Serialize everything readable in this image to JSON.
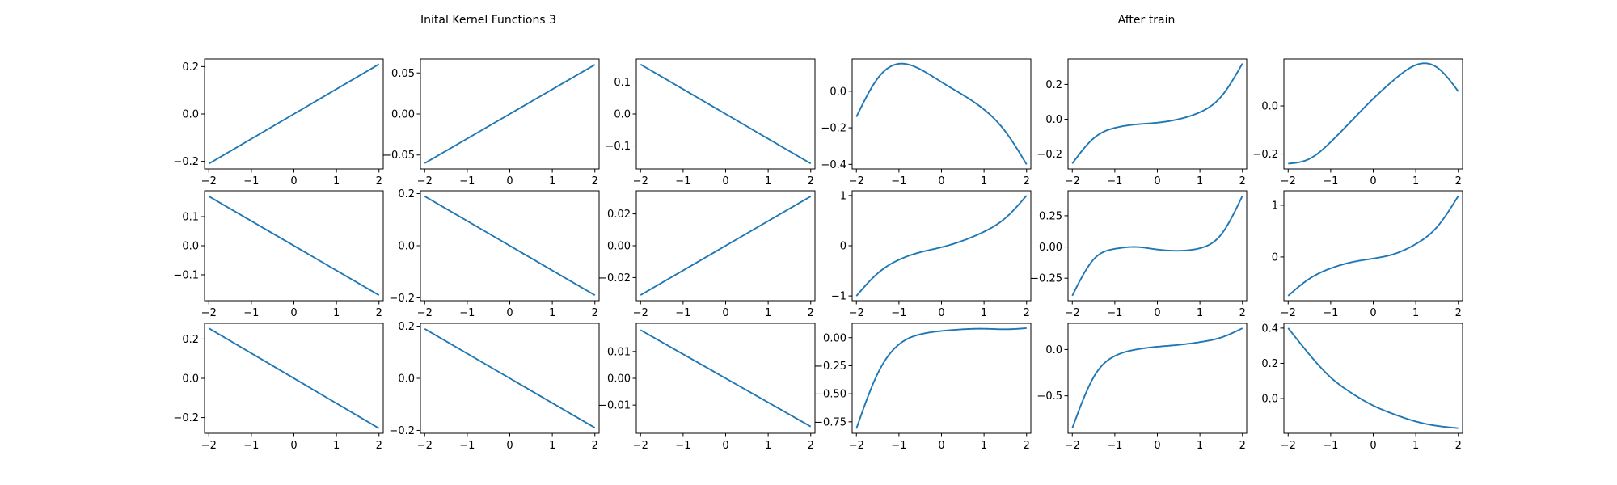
{
  "titles": {
    "left": "Inital Kernel Functions 3",
    "right": "After train"
  },
  "chart_data": [
    {
      "type": "line",
      "row": 0,
      "col": 0,
      "xlim": [
        -2.1,
        2.1
      ],
      "ylim": [
        -0.232,
        0.232
      ],
      "xticks": [
        -2,
        -1,
        0,
        1,
        2
      ],
      "yticks": [
        -0.2,
        0.0,
        0.2
      ],
      "yticklabels": [
        "−0.2",
        "0.0",
        "0.2"
      ],
      "series": [
        {
          "fn": "linear",
          "x": [
            -2,
            2
          ],
          "y": [
            -0.21,
            0.21
          ],
          "color": "#1f77b4"
        }
      ]
    },
    {
      "type": "line",
      "row": 0,
      "col": 1,
      "xlim": [
        -2.1,
        2.1
      ],
      "ylim": [
        -0.067,
        0.067
      ],
      "xticks": [
        -2,
        -1,
        0,
        1,
        2
      ],
      "yticks": [
        -0.05,
        0.0,
        0.05
      ],
      "yticklabels": [
        "−0.05",
        "0.00",
        "0.05"
      ],
      "series": [
        {
          "fn": "linear",
          "x": [
            -2,
            2
          ],
          "y": [
            -0.06,
            0.06
          ],
          "color": "#1f77b4"
        }
      ]
    },
    {
      "type": "line",
      "row": 0,
      "col": 2,
      "xlim": [
        -2.1,
        2.1
      ],
      "ylim": [
        -0.172,
        0.172
      ],
      "xticks": [
        -2,
        -1,
        0,
        1,
        2
      ],
      "yticks": [
        -0.1,
        0.0,
        0.1
      ],
      "yticklabels": [
        "−0.1",
        "0.0",
        "0.1"
      ],
      "series": [
        {
          "fn": "linear",
          "x": [
            -2,
            2
          ],
          "y": [
            0.155,
            -0.155
          ],
          "color": "#1f77b4"
        }
      ]
    },
    {
      "type": "line",
      "row": 0,
      "col": 3,
      "xlim": [
        -2.1,
        2.1
      ],
      "ylim": [
        -0.425,
        0.176
      ],
      "xticks": [
        -2,
        -1,
        0,
        1,
        2
      ],
      "yticks": [
        -0.4,
        -0.2,
        0.0
      ],
      "yticklabels": [
        "−0.4",
        "−0.2",
        "0.0"
      ],
      "series": [
        {
          "fn": "spline",
          "x": [
            -2,
            -1.5,
            -1,
            -0.5,
            0,
            0.5,
            1,
            1.5,
            2
          ],
          "y": [
            -0.14,
            0.07,
            0.15,
            0.12,
            0.05,
            -0.02,
            -0.1,
            -0.22,
            -0.4
          ],
          "color": "#1f77b4"
        }
      ]
    },
    {
      "type": "line",
      "row": 0,
      "col": 4,
      "xlim": [
        -2.1,
        2.1
      ],
      "ylim": [
        -0.286,
        0.346
      ],
      "xticks": [
        -2,
        -1,
        0,
        1,
        2
      ],
      "yticks": [
        -0.2,
        0.0,
        0.2
      ],
      "yticklabels": [
        "−0.2",
        "0.0",
        "0.2"
      ],
      "series": [
        {
          "fn": "spline",
          "x": [
            -2,
            -1.5,
            -1,
            -0.5,
            0,
            0.5,
            1,
            1.5,
            2
          ],
          "y": [
            -0.255,
            -0.11,
            -0.05,
            -0.03,
            -0.02,
            0.0,
            0.04,
            0.13,
            0.32
          ],
          "color": "#1f77b4"
        }
      ]
    },
    {
      "type": "line",
      "row": 0,
      "col": 5,
      "xlim": [
        -2.1,
        2.1
      ],
      "ylim": [
        -0.262,
        0.195
      ],
      "xticks": [
        -2,
        -1,
        0,
        1,
        2
      ],
      "yticks": [
        -0.2,
        0.0
      ],
      "yticklabels": [
        "−0.2",
        "0.0"
      ],
      "series": [
        {
          "fn": "spline",
          "x": [
            -2,
            -1.5,
            -1,
            -0.5,
            0,
            0.5,
            1,
            1.5,
            2
          ],
          "y": [
            -0.24,
            -0.22,
            -0.15,
            -0.06,
            0.03,
            0.11,
            0.17,
            0.16,
            0.06
          ],
          "color": "#1f77b4"
        }
      ]
    },
    {
      "type": "line",
      "row": 1,
      "col": 0,
      "xlim": [
        -2.1,
        2.1
      ],
      "ylim": [
        -0.189,
        0.189
      ],
      "xticks": [
        -2,
        -1,
        0,
        1,
        2
      ],
      "yticks": [
        -0.1,
        0.0,
        0.1
      ],
      "yticklabels": [
        "−0.1",
        "0.0",
        "0.1"
      ],
      "series": [
        {
          "fn": "linear",
          "x": [
            -2,
            2
          ],
          "y": [
            0.17,
            -0.17
          ],
          "color": "#1f77b4"
        }
      ]
    },
    {
      "type": "line",
      "row": 1,
      "col": 1,
      "xlim": [
        -2.1,
        2.1
      ],
      "ylim": [
        -0.211,
        0.211
      ],
      "xticks": [
        -2,
        -1,
        0,
        1,
        2
      ],
      "yticks": [
        -0.2,
        0.0,
        0.2
      ],
      "yticklabels": [
        "−0.2",
        "0.0",
        "0.2"
      ],
      "series": [
        {
          "fn": "linear",
          "x": [
            -2,
            2
          ],
          "y": [
            0.19,
            -0.19
          ],
          "color": "#1f77b4"
        }
      ]
    },
    {
      "type": "line",
      "row": 1,
      "col": 2,
      "xlim": [
        -2.1,
        2.1
      ],
      "ylim": [
        -0.0345,
        0.0345
      ],
      "xticks": [
        -2,
        -1,
        0,
        1,
        2
      ],
      "yticks": [
        -0.02,
        0.0,
        0.02
      ],
      "yticklabels": [
        "−0.02",
        "0.00",
        "0.02"
      ],
      "series": [
        {
          "fn": "linear",
          "x": [
            -2,
            2
          ],
          "y": [
            -0.031,
            0.031
          ],
          "color": "#1f77b4"
        }
      ]
    },
    {
      "type": "line",
      "row": 1,
      "col": 3,
      "xlim": [
        -2.1,
        2.1
      ],
      "ylim": [
        -1.095,
        1.095
      ],
      "xticks": [
        -2,
        -1,
        0,
        1,
        2
      ],
      "yticks": [
        -1,
        0,
        1
      ],
      "yticklabels": [
        "−1",
        "0",
        "1"
      ],
      "series": [
        {
          "fn": "spline",
          "x": [
            -2,
            -1.5,
            -1,
            -0.5,
            0,
            0.5,
            1,
            1.5,
            2
          ],
          "y": [
            -1.0,
            -0.55,
            -0.28,
            -0.13,
            -0.03,
            0.1,
            0.28,
            0.55,
            1.0
          ],
          "color": "#1f77b4"
        }
      ]
    },
    {
      "type": "line",
      "row": 1,
      "col": 4,
      "xlim": [
        -2.1,
        2.1
      ],
      "ylim": [
        -0.43,
        0.45
      ],
      "xticks": [
        -2,
        -1,
        0,
        1,
        2
      ],
      "yticks": [
        -0.25,
        0.0,
        0.25
      ],
      "yticklabels": [
        "−0.25",
        "0.00",
        "0.25"
      ],
      "series": [
        {
          "fn": "spline",
          "x": [
            -2,
            -1.5,
            -1,
            -0.5,
            0,
            0.5,
            1,
            1.5,
            2
          ],
          "y": [
            -0.39,
            -0.1,
            -0.015,
            0.0,
            -0.02,
            -0.03,
            -0.01,
            0.1,
            0.41
          ],
          "color": "#1f77b4"
        }
      ]
    },
    {
      "type": "line",
      "row": 1,
      "col": 5,
      "xlim": [
        -2.1,
        2.1
      ],
      "ylim": [
        -0.845,
        1.28
      ],
      "xticks": [
        -2,
        -1,
        0,
        1,
        2
      ],
      "yticks": [
        0,
        1
      ],
      "yticklabels": [
        "0",
        "1"
      ],
      "series": [
        {
          "fn": "spline",
          "x": [
            -2,
            -1.5,
            -1,
            -0.5,
            0,
            0.5,
            1,
            1.5,
            2
          ],
          "y": [
            -0.75,
            -0.42,
            -0.22,
            -0.1,
            -0.03,
            0.06,
            0.25,
            0.58,
            1.18
          ],
          "color": "#1f77b4"
        }
      ]
    },
    {
      "type": "line",
      "row": 2,
      "col": 0,
      "xlim": [
        -2.1,
        2.1
      ],
      "ylim": [
        -0.28,
        0.28
      ],
      "xticks": [
        -2,
        -1,
        0,
        1,
        2
      ],
      "yticks": [
        -0.2,
        0.0,
        0.2
      ],
      "yticklabels": [
        "−0.2",
        "0.0",
        "0.2"
      ],
      "series": [
        {
          "fn": "linear",
          "x": [
            -2,
            2
          ],
          "y": [
            0.255,
            -0.255
          ],
          "color": "#1f77b4"
        }
      ]
    },
    {
      "type": "line",
      "row": 2,
      "col": 1,
      "xlim": [
        -2.1,
        2.1
      ],
      "ylim": [
        -0.211,
        0.211
      ],
      "xticks": [
        -2,
        -1,
        0,
        1,
        2
      ],
      "yticks": [
        -0.2,
        0.0,
        0.2
      ],
      "yticklabels": [
        "−0.2",
        "0.0",
        "0.2"
      ],
      "series": [
        {
          "fn": "linear",
          "x": [
            -2,
            2
          ],
          "y": [
            0.19,
            -0.19
          ],
          "color": "#1f77b4"
        }
      ]
    },
    {
      "type": "line",
      "row": 2,
      "col": 2,
      "xlim": [
        -2.1,
        2.1
      ],
      "ylim": [
        -0.0205,
        0.0205
      ],
      "xticks": [
        -2,
        -1,
        0,
        1,
        2
      ],
      "yticks": [
        -0.01,
        0.0,
        0.01
      ],
      "yticklabels": [
        "−0.01",
        "0.00",
        "0.01"
      ],
      "series": [
        {
          "fn": "linear",
          "x": [
            -2,
            2
          ],
          "y": [
            0.018,
            -0.018
          ],
          "color": "#1f77b4"
        }
      ]
    },
    {
      "type": "line",
      "row": 2,
      "col": 3,
      "xlim": [
        -2.1,
        2.1
      ],
      "ylim": [
        -0.852,
        0.128
      ],
      "xticks": [
        -2,
        -1,
        0,
        1,
        2
      ],
      "yticks": [
        -0.75,
        -0.5,
        -0.25,
        0.0
      ],
      "yticklabels": [
        "−0.75",
        "−0.50",
        "−0.25",
        "0.00"
      ],
      "series": [
        {
          "fn": "spline",
          "x": [
            -2,
            -1.5,
            -1,
            -0.5,
            0,
            0.5,
            1,
            1.5,
            2
          ],
          "y": [
            -0.81,
            -0.32,
            -0.06,
            0.03,
            0.06,
            0.075,
            0.08,
            0.075,
            0.085
          ],
          "color": "#1f77b4"
        }
      ]
    },
    {
      "type": "line",
      "row": 2,
      "col": 4,
      "xlim": [
        -2.1,
        2.1
      ],
      "ylim": [
        -0.905,
        0.283
      ],
      "xticks": [
        -2,
        -1,
        0,
        1,
        2
      ],
      "yticks": [
        -0.5,
        0.0
      ],
      "yticklabels": [
        "−0.5",
        "0.0"
      ],
      "series": [
        {
          "fn": "spline",
          "x": [
            -2,
            -1.5,
            -1,
            -0.5,
            0,
            0.5,
            1,
            1.5,
            2
          ],
          "y": [
            -0.85,
            -0.3,
            -0.07,
            0.0,
            0.03,
            0.05,
            0.08,
            0.13,
            0.23
          ],
          "color": "#1f77b4"
        }
      ]
    },
    {
      "type": "line",
      "row": 2,
      "col": 5,
      "xlim": [
        -2.1,
        2.1
      ],
      "ylim": [
        -0.197,
        0.427
      ],
      "xticks": [
        -2,
        -1,
        0,
        1,
        2
      ],
      "yticks": [
        0.0,
        0.2,
        0.4
      ],
      "yticklabels": [
        "0.0",
        "0.2",
        "0.4"
      ],
      "series": [
        {
          "fn": "spline",
          "x": [
            -2,
            -1.5,
            -1,
            -0.5,
            0,
            0.5,
            1,
            1.5,
            2
          ],
          "y": [
            0.4,
            0.25,
            0.12,
            0.03,
            -0.04,
            -0.09,
            -0.13,
            -0.155,
            -0.168
          ],
          "color": "#1f77b4"
        }
      ]
    }
  ]
}
